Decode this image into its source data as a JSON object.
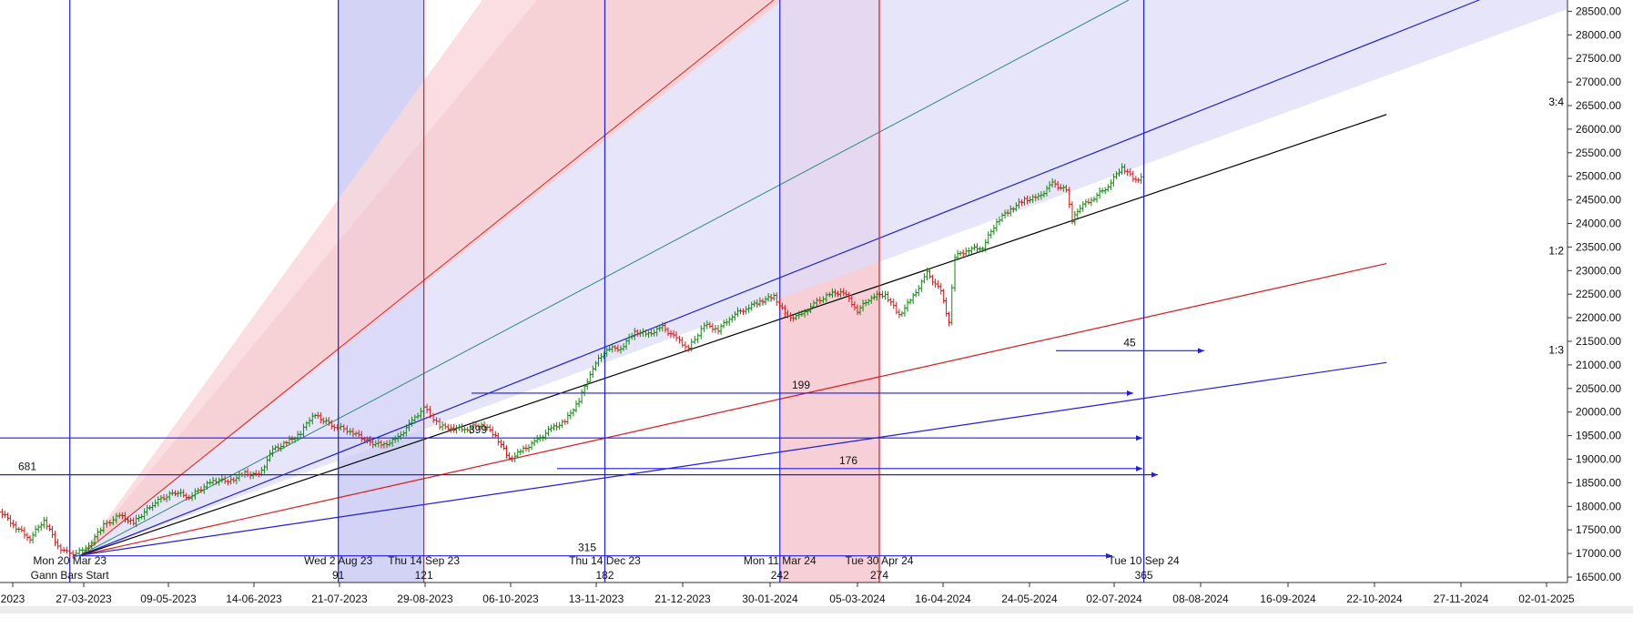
{
  "chart_data": {
    "type": "line",
    "y_axis": {
      "ticks": [
        "28500.00",
        "28000.00",
        "27500.00",
        "27000.00",
        "26500.00",
        "26000.00",
        "25500.00",
        "25000.00",
        "24500.00",
        "24000.00",
        "23500.00",
        "23000.00",
        "22500.00",
        "22000.00",
        "21500.00",
        "21000.00",
        "20500.00",
        "20000.00",
        "19500.00",
        "19000.00",
        "18500.00",
        "18000.00",
        "17500.00",
        "17000.00",
        "16500.00"
      ],
      "range": [
        16300,
        28650
      ]
    },
    "x_axis": {
      "ticks": [
        "2023",
        "27-03-2023",
        "09-05-2023",
        "14-06-2023",
        "21-07-2023",
        "29-08-2023",
        "06-10-2023",
        "13-11-2023",
        "21-12-2023",
        "30-01-2024",
        "05-03-2024",
        "16-04-2024",
        "24-05-2024",
        "02-07-2024",
        "08-08-2024",
        "16-09-2024",
        "22-10-2024",
        "27-11-2024",
        "02-01-2025"
      ]
    },
    "price_series": {
      "name": "",
      "points": [
        [
          "2023-02-07",
          17900
        ],
        [
          "2023-02-14",
          17850
        ],
        [
          "2023-02-21",
          17550
        ],
        [
          "2023-02-28",
          17320
        ],
        [
          "2023-03-07",
          17720
        ],
        [
          "2023-03-14",
          17150
        ],
        [
          "2023-03-20",
          16980
        ],
        [
          "2023-03-28",
          17080
        ],
        [
          "2023-04-06",
          17600
        ],
        [
          "2023-04-14",
          17800
        ],
        [
          "2023-04-21",
          17650
        ],
        [
          "2023-05-02",
          18100
        ],
        [
          "2023-05-12",
          18300
        ],
        [
          "2023-05-19",
          18200
        ],
        [
          "2023-05-31",
          18550
        ],
        [
          "2023-06-09",
          18550
        ],
        [
          "2023-06-16",
          18700
        ],
        [
          "2023-06-23",
          18650
        ],
        [
          "2023-06-30",
          19200
        ],
        [
          "2023-07-07",
          19350
        ],
        [
          "2023-07-14",
          19550
        ],
        [
          "2023-07-20",
          19950
        ],
        [
          "2023-07-31",
          19700
        ],
        [
          "2023-08-08",
          19600
        ],
        [
          "2023-08-18",
          19350
        ],
        [
          "2023-08-25",
          19300
        ],
        [
          "2023-09-01",
          19450
        ],
        [
          "2023-09-08",
          19800
        ],
        [
          "2023-09-14",
          20100
        ],
        [
          "2023-09-22",
          19700
        ],
        [
          "2023-09-29",
          19650
        ],
        [
          "2023-10-06",
          19650
        ],
        [
          "2023-10-13",
          19750
        ],
        [
          "2023-10-20",
          19500
        ],
        [
          "2023-10-27",
          19000
        ],
        [
          "2023-11-03",
          19200
        ],
        [
          "2023-11-10",
          19400
        ],
        [
          "2023-11-17",
          19650
        ],
        [
          "2023-11-24",
          19800
        ],
        [
          "2023-12-01",
          20250
        ],
        [
          "2023-12-08",
          20950
        ],
        [
          "2023-12-15",
          21350
        ],
        [
          "2023-12-22",
          21350
        ],
        [
          "2023-12-29",
          21700
        ],
        [
          "2024-01-05",
          21650
        ],
        [
          "2024-01-12",
          21800
        ],
        [
          "2024-01-19",
          21550
        ],
        [
          "2024-01-25",
          21350
        ],
        [
          "2024-02-02",
          21850
        ],
        [
          "2024-02-09",
          21750
        ],
        [
          "2024-02-16",
          22050
        ],
        [
          "2024-02-23",
          22200
        ],
        [
          "2024-03-01",
          22350
        ],
        [
          "2024-03-08",
          22450
        ],
        [
          "2024-03-15",
          22000
        ],
        [
          "2024-03-22",
          22050
        ],
        [
          "2024-03-28",
          22300
        ],
        [
          "2024-04-05",
          22500
        ],
        [
          "2024-04-12",
          22550
        ],
        [
          "2024-04-19",
          22150
        ],
        [
          "2024-04-26",
          22450
        ],
        [
          "2024-05-03",
          22500
        ],
        [
          "2024-05-10",
          22050
        ],
        [
          "2024-05-17",
          22450
        ],
        [
          "2024-05-24",
          22950
        ],
        [
          "2024-05-31",
          22550
        ],
        [
          "2024-06-04",
          21900
        ],
        [
          "2024-06-07",
          23300
        ],
        [
          "2024-06-14",
          23450
        ],
        [
          "2024-06-21",
          23500
        ],
        [
          "2024-06-28",
          24050
        ],
        [
          "2024-07-05",
          24300
        ],
        [
          "2024-07-12",
          24500
        ],
        [
          "2024-07-19",
          24550
        ],
        [
          "2024-07-26",
          24850
        ],
        [
          "2024-08-02",
          24700
        ],
        [
          "2024-08-05",
          24050
        ],
        [
          "2024-08-09",
          24350
        ],
        [
          "2024-08-16",
          24550
        ],
        [
          "2024-08-23",
          24800
        ],
        [
          "2024-08-30",
          25200
        ],
        [
          "2024-09-06",
          24900
        ],
        [
          "2024-09-10",
          25050
        ]
      ]
    },
    "gann_lines": [
      {
        "label": "3:4",
        "points": [
          [
            "2023-03-20",
            16850
          ],
          [
            "2025-01-10",
            26310
          ]
        ]
      },
      {
        "label": "1:2",
        "points": [
          [
            "2023-03-20",
            16850
          ],
          [
            "2025-01-10",
            23150
          ]
        ]
      },
      {
        "label": "1:3",
        "points": [
          [
            "2023-03-20",
            16850
          ],
          [
            "2025-01-10",
            21050
          ]
        ]
      }
    ],
    "vertical_lines": [
      {
        "date": "2023-03-20",
        "label": "Mon 20 Mar 23",
        "bars": "Gann Bars Start"
      },
      {
        "date": "2023-08-02",
        "label": "Wed 2 Aug 23",
        "bars": "91"
      },
      {
        "date": "2023-09-14",
        "label": "Thu 14 Sep 23",
        "bars": "121"
      },
      {
        "date": "2023-12-14",
        "label": "Thu 14 Dec 23",
        "bars": "182"
      },
      {
        "date": "2024-03-11",
        "label": "Mon 11 Mar 24",
        "bars": "242"
      },
      {
        "date": "2024-04-30",
        "label": "Tue 30 Apr 24",
        "bars": "274"
      },
      {
        "date": "2024-09-10",
        "label": "Tue 10 Sep 24",
        "bars": "365"
      }
    ],
    "horizontal_projections": [
      {
        "label": "681",
        "y": 18670
      },
      {
        "label": "399",
        "y": 19450
      },
      {
        "label": "199",
        "y": 20400
      },
      {
        "label": "176",
        "y": 18800
      },
      {
        "label": "315",
        "y": 16950
      },
      {
        "label": "45",
        "y": 21300
      }
    ]
  }
}
